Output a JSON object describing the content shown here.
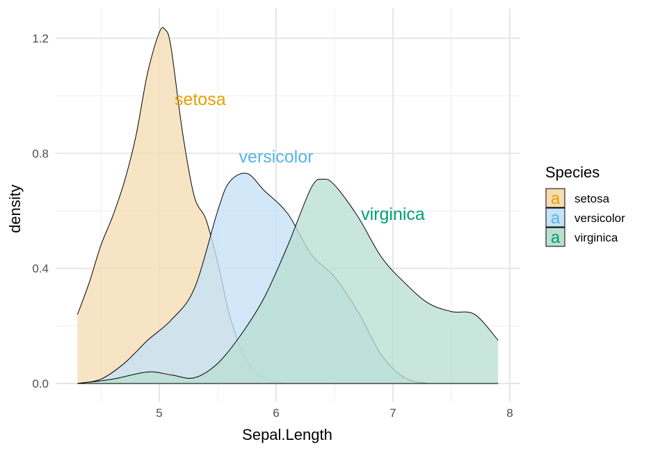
{
  "chart_data": {
    "type": "area",
    "title": "",
    "xlabel": "Sepal.Length",
    "ylabel": "density",
    "xlim": [
      4.3,
      7.9
    ],
    "ylim": [
      0.0,
      1.2
    ],
    "x_ticks": [
      5,
      6,
      7,
      8
    ],
    "x_tick_labels": [
      "5",
      "6",
      "7",
      "8"
    ],
    "y_ticks": [
      0.0,
      0.4,
      0.8,
      1.2
    ],
    "y_tick_labels": [
      "0.0",
      "0.4",
      "0.8",
      "1.2"
    ],
    "grid": true,
    "legend": {
      "title": "Species",
      "position": "right",
      "key_glyph": "a"
    },
    "series": [
      {
        "name": "setosa",
        "color": "#E69F00",
        "fill": "#F5DCB3",
        "label": "setosa",
        "label_pos": [
          5.35,
          0.99
        ],
        "x": [
          4.3,
          4.4,
          4.5,
          4.6,
          4.7,
          4.8,
          4.9,
          5.0,
          5.05,
          5.1,
          5.2,
          5.3,
          5.4,
          5.5,
          5.6,
          5.7,
          5.8,
          5.9,
          6.0,
          6.1
        ],
        "y": [
          0.24,
          0.35,
          0.48,
          0.58,
          0.7,
          0.86,
          1.08,
          1.22,
          1.23,
          1.17,
          0.87,
          0.65,
          0.57,
          0.42,
          0.24,
          0.12,
          0.05,
          0.02,
          0.005,
          0.0
        ]
      },
      {
        "name": "versicolor",
        "color": "#56B4E9",
        "fill": "#C5E2F6",
        "label": "versicolor",
        "label_pos": [
          6.0,
          0.79
        ],
        "x": [
          4.3,
          4.5,
          4.7,
          4.9,
          5.1,
          5.3,
          5.5,
          5.6,
          5.75,
          5.9,
          6.1,
          6.3,
          6.5,
          6.7,
          6.9,
          7.1,
          7.3
        ],
        "y": [
          0.0,
          0.015,
          0.07,
          0.15,
          0.22,
          0.33,
          0.6,
          0.7,
          0.73,
          0.67,
          0.59,
          0.45,
          0.37,
          0.25,
          0.1,
          0.02,
          0.0
        ]
      },
      {
        "name": "virginica",
        "color": "#009E73",
        "fill": "#BADFD2",
        "label": "virginica",
        "label_pos": [
          7.0,
          0.59
        ],
        "x": [
          4.3,
          4.6,
          4.9,
          5.1,
          5.3,
          5.5,
          5.7,
          5.9,
          6.1,
          6.3,
          6.4,
          6.5,
          6.7,
          6.9,
          7.1,
          7.3,
          7.5,
          7.7,
          7.9
        ],
        "y": [
          0.0,
          0.015,
          0.04,
          0.03,
          0.02,
          0.07,
          0.17,
          0.3,
          0.48,
          0.68,
          0.71,
          0.69,
          0.58,
          0.44,
          0.35,
          0.28,
          0.25,
          0.24,
          0.15
        ]
      }
    ]
  }
}
